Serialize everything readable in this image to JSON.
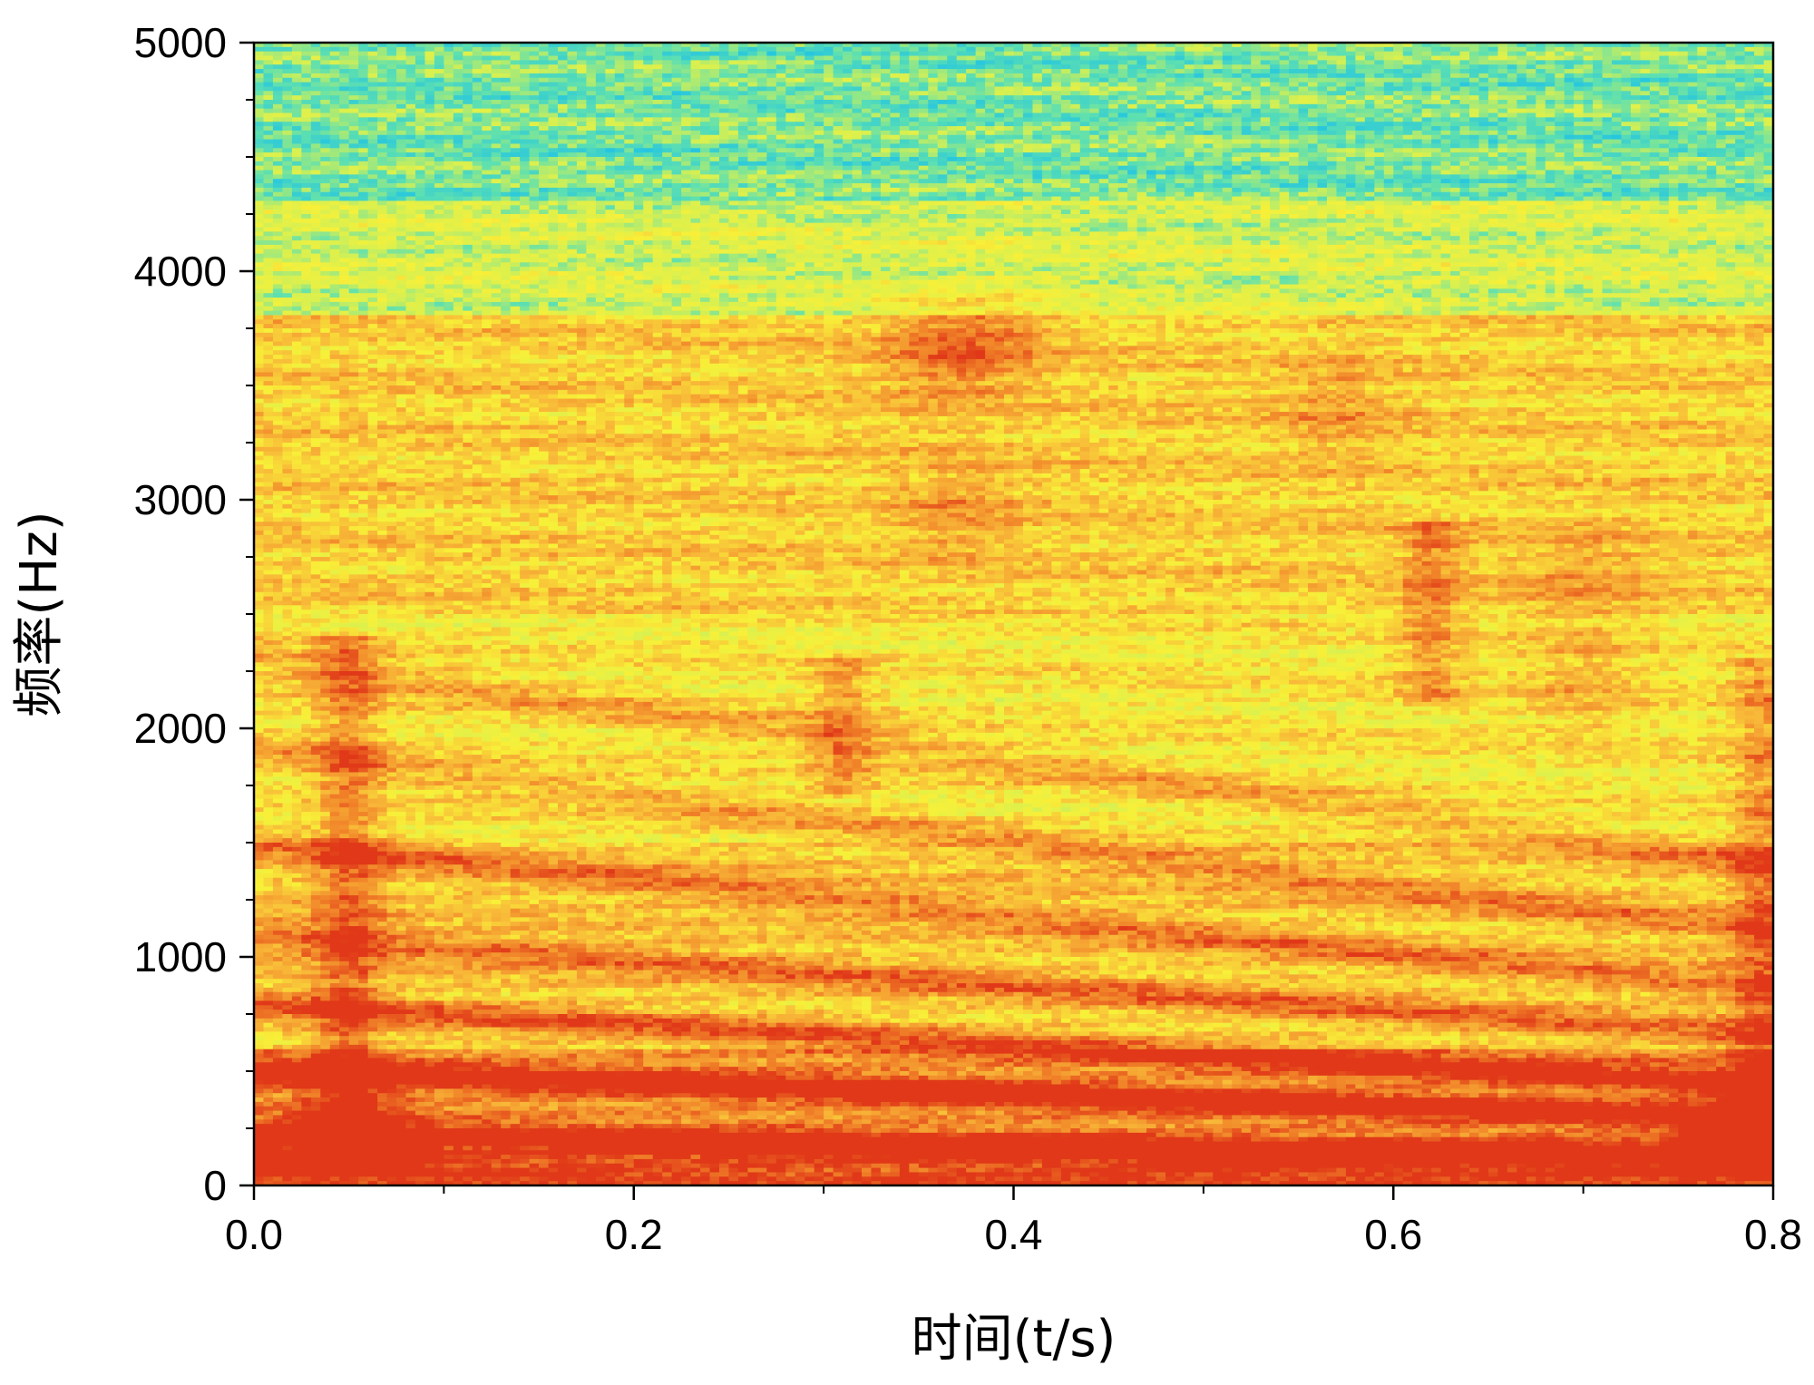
{
  "chart_data": {
    "type": "heatmap",
    "subtype": "spectrogram",
    "xlabel": "时间(t/s)",
    "ylabel": "频率(Hz)",
    "xlim": [
      0.0,
      0.8
    ],
    "ylim": [
      0,
      5000
    ],
    "x_ticks": [
      "0.0",
      "0.2",
      "0.4",
      "0.6",
      "0.8"
    ],
    "y_ticks": [
      "0",
      "1000",
      "2000",
      "3000",
      "4000",
      "5000"
    ],
    "colormap": [
      "#26c6e0",
      "#5ee0b0",
      "#d8f050",
      "#f8f038",
      "#f8b838",
      "#f08028",
      "#e03818"
    ],
    "intensity_bands": [
      {
        "f_min": 0,
        "f_max": 150,
        "level": 1.0
      },
      {
        "f_min": 150,
        "f_max": 600,
        "level": 0.82
      },
      {
        "f_min": 600,
        "f_max": 1500,
        "level": 0.62
      },
      {
        "f_min": 1500,
        "f_max": 2500,
        "level": 0.52
      },
      {
        "f_min": 2500,
        "f_max": 3800,
        "level": 0.6
      },
      {
        "f_min": 3800,
        "f_max": 4300,
        "level": 0.36
      },
      {
        "f_min": 4300,
        "f_max": 5000,
        "level": 0.2
      }
    ],
    "harmonics": [
      {
        "f_start": 210,
        "f_end": 150,
        "strength": 0.95
      },
      {
        "f_start": 500,
        "f_end": 300,
        "strength": 0.85
      },
      {
        "f_start": 800,
        "f_end": 430,
        "strength": 0.7
      },
      {
        "f_start": 1100,
        "f_end": 650,
        "strength": 0.6
      },
      {
        "f_start": 1500,
        "f_end": 850,
        "strength": 0.52
      },
      {
        "f_start": 1900,
        "f_end": 1100,
        "strength": 0.45
      },
      {
        "f_start": 2300,
        "f_end": 1400,
        "strength": 0.42
      }
    ],
    "vertical_bursts": [
      {
        "t": 0.05,
        "f_min": 0,
        "f_max": 2400,
        "strength": 0.55
      },
      {
        "t": 0.31,
        "f_min": 1700,
        "f_max": 2300,
        "strength": 0.45
      },
      {
        "t": 0.62,
        "f_min": 2100,
        "f_max": 2900,
        "strength": 0.45
      },
      {
        "t": 0.795,
        "f_min": 0,
        "f_max": 2300,
        "strength": 0.5
      }
    ],
    "hot_spots": [
      {
        "t": 0.05,
        "f": 100,
        "strength": 0.9
      },
      {
        "t": 0.36,
        "f": 3650,
        "strength": 0.4
      },
      {
        "t": 0.39,
        "f": 3700,
        "strength": 0.4
      },
      {
        "t": 0.37,
        "f": 2950,
        "strength": 0.35
      },
      {
        "t": 0.57,
        "f": 3400,
        "strength": 0.3
      },
      {
        "t": 0.7,
        "f": 2200,
        "strength": 0.35
      },
      {
        "t": 0.7,
        "f": 2650,
        "strength": 0.3
      },
      {
        "t": 0.795,
        "f": 150,
        "strength": 0.9
      }
    ]
  }
}
